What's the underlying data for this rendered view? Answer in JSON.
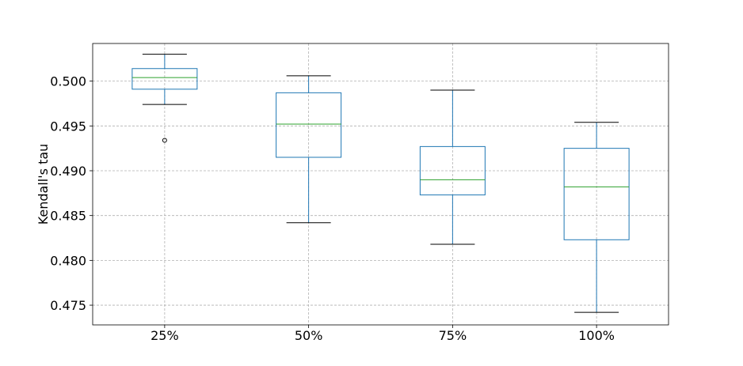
{
  "chart_data": {
    "type": "box",
    "title": "",
    "xlabel": "",
    "ylabel": "Kendall's tau",
    "ylim": [
      0.4728,
      0.5042
    ],
    "yticks": [
      0.475,
      0.48,
      0.485,
      0.49,
      0.495,
      0.5
    ],
    "ytick_labels": [
      "0.475",
      "0.480",
      "0.485",
      "0.490",
      "0.495",
      "0.500"
    ],
    "categories": [
      "25%",
      "50%",
      "75%",
      "100%"
    ],
    "grid": true,
    "colors": {
      "box": "#1f77b4",
      "median": "#2ca02c",
      "whisker_cap": "#000000",
      "grid": "#b0b0b0"
    },
    "boxes": [
      {
        "category": "25%",
        "whisker_low": 0.4974,
        "q1": 0.4991,
        "median": 0.5004,
        "q3": 0.5014,
        "whisker_high": 0.503,
        "outliers": [
          0.4934
        ]
      },
      {
        "category": "50%",
        "whisker_low": 0.4842,
        "q1": 0.4915,
        "median": 0.4952,
        "q3": 0.4987,
        "whisker_high": 0.5006,
        "outliers": []
      },
      {
        "category": "75%",
        "whisker_low": 0.4818,
        "q1": 0.4873,
        "median": 0.489,
        "q3": 0.4927,
        "whisker_high": 0.499,
        "outliers": []
      },
      {
        "category": "100%",
        "whisker_low": 0.4742,
        "q1": 0.4823,
        "median": 0.4882,
        "q3": 0.4925,
        "whisker_high": 0.4954,
        "outliers": []
      }
    ]
  }
}
